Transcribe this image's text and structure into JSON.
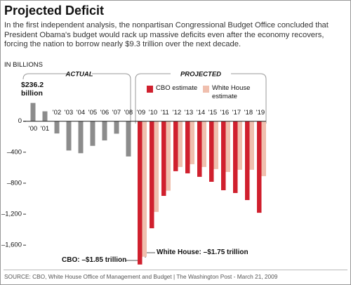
{
  "chart_data": {
    "type": "bar",
    "title": "Projected Deficit",
    "subtitle": "In the first independent analysis, the nonpartisan Congressional Budget Office concluded that President Obama's budget would rack up massive deficits even after the economy recovers, forcing the nation to borrow nearly $9.3 trillion over the next decade.",
    "y_label": "IN BILLIONS",
    "projected_label": "PROJECTED",
    "source": "SOURCE: CBO, White House Office of Management and Budget | The Washington Post - March 21, 2009",
    "categories": [
      "'00",
      "'01",
      "'02",
      "'03",
      "'04",
      "'05",
      "'06",
      "'07",
      "'08",
      "'09",
      "'10",
      "'11",
      "'12",
      "'13",
      "'14",
      "'15",
      "'16",
      "'17",
      "'18",
      "'19"
    ],
    "series": [
      {
        "name": "ACTUAL",
        "color": "#8c8c8c",
        "values": [
          236.2,
          128,
          -158,
          -378,
          -413,
          -318,
          -248,
          -161,
          -455,
          null,
          null,
          null,
          null,
          null,
          null,
          null,
          null,
          null,
          null,
          null
        ],
        "value_labels": [
          "$236.2 billion",
          null,
          null,
          null,
          null,
          null,
          null,
          null,
          null,
          null,
          null,
          null,
          null,
          null,
          null,
          null,
          null,
          null,
          null,
          null
        ]
      },
      {
        "name": "CBO estimate",
        "color": "#d0202e",
        "values": [
          null,
          null,
          null,
          null,
          null,
          null,
          null,
          null,
          null,
          -1850,
          -1382,
          -964,
          -645,
          -673,
          -718,
          -782,
          -891,
          -927,
          -1018,
          -1182
        ],
        "value_labels": [
          null,
          null,
          null,
          null,
          null,
          null,
          null,
          null,
          null,
          "CBO: –$1.85 trillion",
          null,
          null,
          null,
          null,
          null,
          null,
          null,
          null,
          null,
          null
        ]
      },
      {
        "name": "White House estimate",
        "color": "#f0bfae",
        "values": [
          null,
          null,
          null,
          null,
          null,
          null,
          null,
          null,
          null,
          -1750,
          -1171,
          -897,
          -591,
          -555,
          -591,
          -618,
          -655,
          -627,
          -627,
          -709
        ],
        "value_labels": [
          null,
          null,
          null,
          null,
          null,
          null,
          null,
          null,
          null,
          "White House: –$1.75 trillion",
          null,
          null,
          null,
          null,
          null,
          null,
          null,
          null,
          null,
          null
        ]
      }
    ],
    "ylim": [
      -1870,
      650
    ],
    "yticks": [
      0,
      {
        "value": -400,
        "label": "–400"
      },
      {
        "value": -800,
        "label": "–800"
      },
      {
        "value": -1200,
        "label": "–1,200"
      },
      {
        "value": -1600,
        "label": "–1,600"
      }
    ],
    "grid": false
  }
}
